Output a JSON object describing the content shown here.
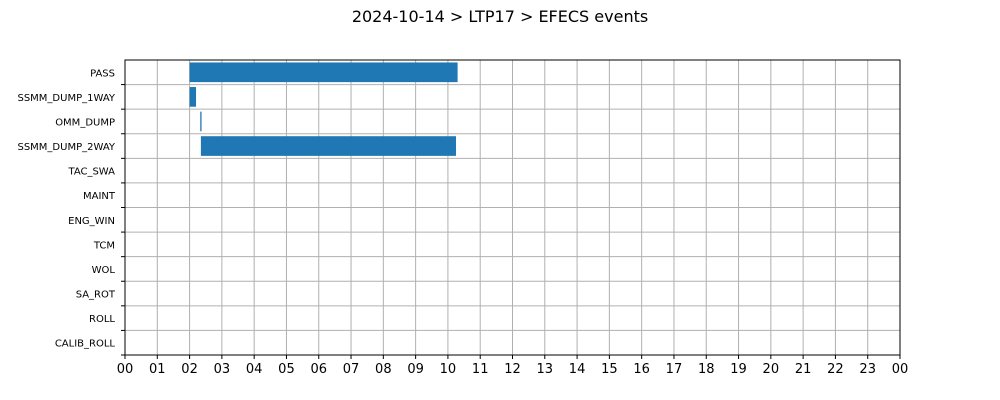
{
  "chart_data": {
    "type": "bar",
    "orientation": "horizontal",
    "title": "2024-10-14 > LTP17 > EFECS events",
    "xlabel": "",
    "ylabel": "",
    "x_unit": "hour of day",
    "xlim": [
      0,
      24
    ],
    "x_tick_labels": [
      "00",
      "01",
      "02",
      "03",
      "04",
      "05",
      "06",
      "07",
      "08",
      "09",
      "10",
      "11",
      "12",
      "13",
      "14",
      "15",
      "16",
      "17",
      "18",
      "19",
      "20",
      "21",
      "22",
      "23",
      "00"
    ],
    "categories": [
      "PASS",
      "SSMM_DUMP_1WAY",
      "OMM_DUMP",
      "SSMM_DUMP_2WAY",
      "TAC_SWA",
      "MAINT",
      "ENG_WIN",
      "TCM",
      "WOL",
      "SA_ROT",
      "ROLL",
      "CALIB_ROLL"
    ],
    "events": [
      {
        "category": "PASS",
        "start": 2.0,
        "end": 10.3
      },
      {
        "category": "SSMM_DUMP_1WAY",
        "start": 2.0,
        "end": 2.2
      },
      {
        "category": "OMM_DUMP",
        "start": 2.33,
        "end": 2.37
      },
      {
        "category": "SSMM_DUMP_2WAY",
        "start": 2.35,
        "end": 10.25
      }
    ],
    "grid": true,
    "legend": "none",
    "bar_color": "#1f77b4"
  }
}
